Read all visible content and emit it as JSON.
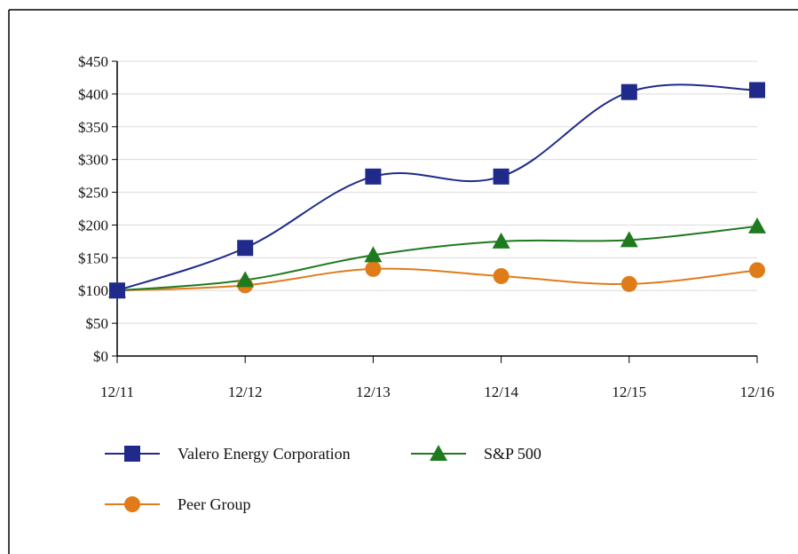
{
  "chart_data": {
    "type": "line",
    "title": "",
    "xlabel": "",
    "ylabel": "",
    "categories": [
      "12/11",
      "12/12",
      "12/13",
      "12/14",
      "12/15",
      "12/16"
    ],
    "yticks": [
      "$0",
      "$50",
      "$100",
      "$150",
      "$200",
      "$250",
      "$300",
      "$350",
      "$400",
      "$450"
    ],
    "ylim": [
      0,
      450
    ],
    "grid": true,
    "legend_position": "bottom-left",
    "series": [
      {
        "name": "Valero Energy Corporation",
        "marker": "square",
        "color": "#1f2a8a",
        "values": [
          100,
          165,
          274,
          274,
          403,
          406
        ]
      },
      {
        "name": "S&P 500",
        "marker": "triangle",
        "color": "#1e7a1e",
        "values": [
          100,
          116,
          154,
          175,
          177,
          198
        ]
      },
      {
        "name": "Peer Group",
        "marker": "circle",
        "color": "#e07b1a",
        "values": [
          100,
          108,
          133,
          122,
          110,
          131
        ]
      }
    ]
  }
}
